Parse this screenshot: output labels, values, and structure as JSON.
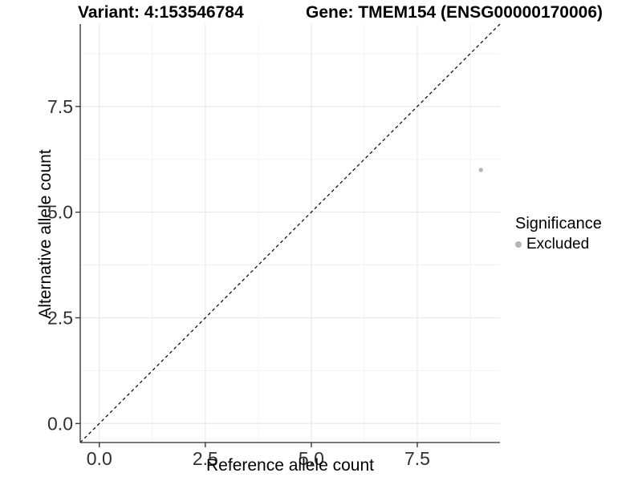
{
  "chart_data": {
    "type": "scatter",
    "title_left": "Variant: 4:153546784",
    "title_right": "Gene: TMEM154 (ENSG00000170006)",
    "xlabel": "Reference allele count",
    "ylabel": "Alternative allele count",
    "xlim": [
      -0.45,
      9.45
    ],
    "ylim": [
      -0.45,
      9.45
    ],
    "x_ticks": [
      0.0,
      2.5,
      5.0,
      7.5
    ],
    "x_tick_labels": [
      "0.0",
      "2.5",
      "5.0",
      "7.5"
    ],
    "y_ticks": [
      0.0,
      2.5,
      5.0,
      7.5
    ],
    "y_tick_labels": [
      "0.0",
      "2.5",
      "5.0",
      "7.5"
    ],
    "minor_ticks": [
      1.25,
      3.75,
      6.25,
      8.75
    ],
    "grid": true,
    "reference_line": {
      "type": "identity",
      "style": "dashed",
      "color": "#000000"
    },
    "points": [
      {
        "x": 9,
        "y": 6,
        "significance": "Excluded"
      }
    ],
    "legend": {
      "title": "Significance",
      "position": "right",
      "entries": [
        {
          "label": "Excluded",
          "color": "#b5b5b5"
        }
      ]
    }
  }
}
